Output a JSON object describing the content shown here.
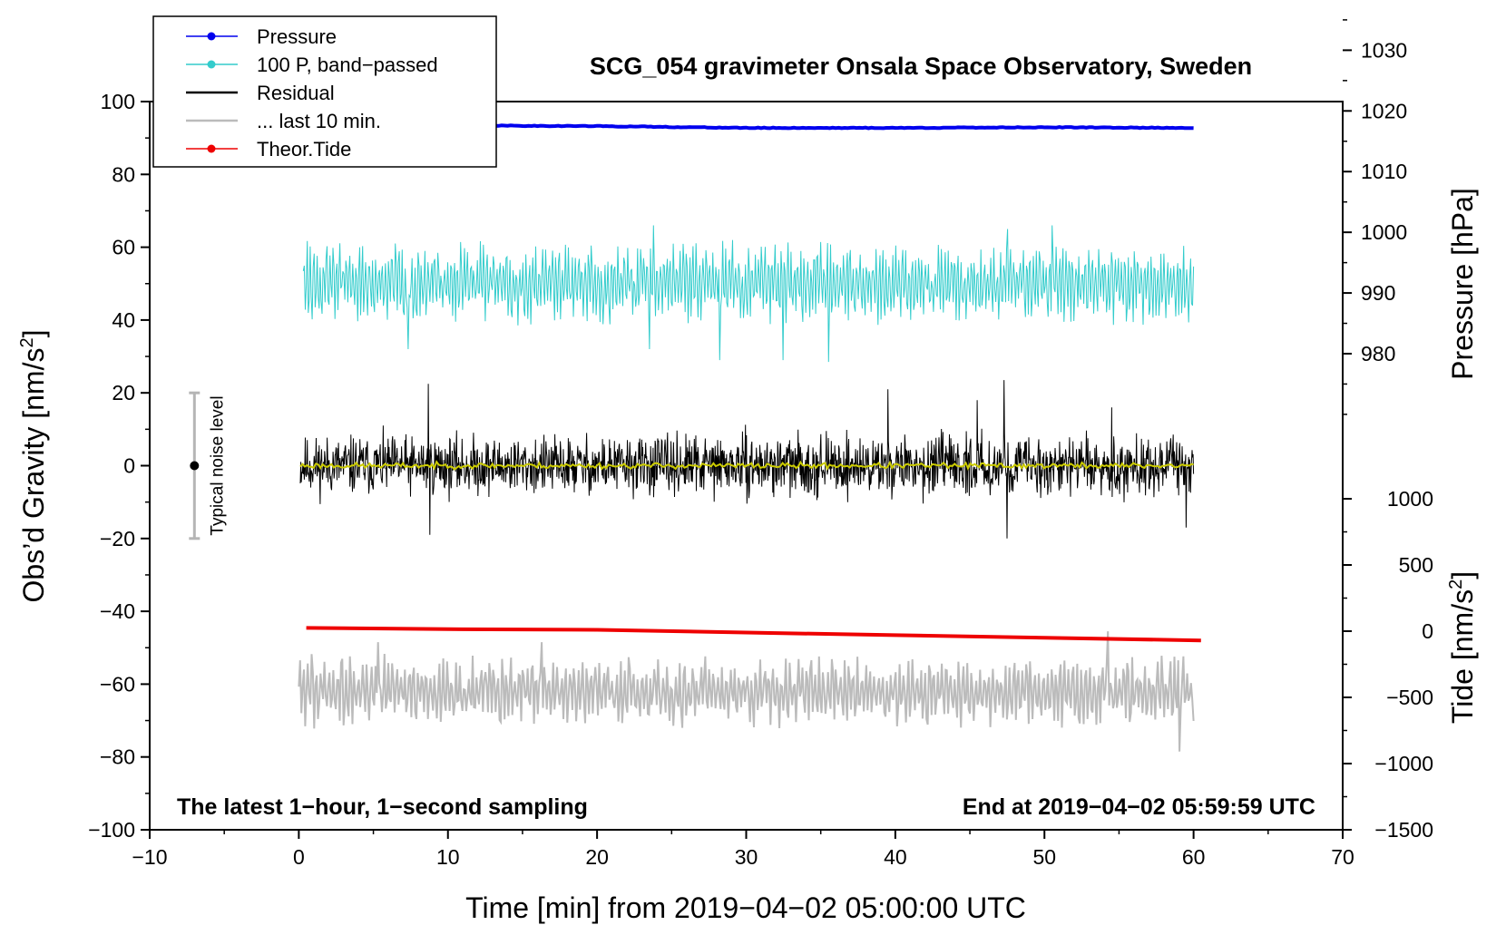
{
  "chart_data": {
    "type": "line",
    "title": "SCG_054 gravimeter Onsala Space Observatory, Sweden",
    "xlabel": "Time [min] from 2019−04−02 05:00:00 UTC",
    "ylabel_left_main": "Obs’d Gravity [nm/s",
    "ylabel_left_sup": "2",
    "ylabel_left_end": "]",
    "ylabel_right_pressure": "Pressure [hPa]",
    "ylabel_right_tide_main": "Tide [nm/s",
    "ylabel_right_tide_sup": "2",
    "ylabel_right_tide_end": "]",
    "xlim": [
      -10,
      70
    ],
    "ylim": [
      -100,
      100
    ],
    "pressure_lim": [
      967,
      1032
    ],
    "tide_lim": [
      -1500,
      1500
    ],
    "x_ticks": [
      -10,
      0,
      10,
      20,
      30,
      40,
      50,
      60,
      70
    ],
    "x_tick_labels": [
      "−10",
      "0",
      "10",
      "20",
      "30",
      "40",
      "50",
      "60",
      "70"
    ],
    "y_ticks": [
      -100,
      -80,
      -60,
      -40,
      -20,
      0,
      20,
      40,
      60,
      80,
      100
    ],
    "y_tick_labels": [
      "−100",
      "−80",
      "−60",
      "−40",
      "−20",
      "0",
      "20",
      "40",
      "60",
      "80",
      "100"
    ],
    "pressure_ticks": [
      980,
      990,
      1000,
      1010,
      1020,
      1030
    ],
    "pressure_tick_labels": [
      "980",
      "990",
      "1000",
      "1010",
      "1020",
      "1030"
    ],
    "tide_ticks": [
      -1500,
      -1000,
      -500,
      0,
      500,
      1000
    ],
    "tide_tick_labels": [
      "−1500",
      "−1000",
      "−500",
      "0",
      "500",
      "1000"
    ],
    "annotation_left": "The latest 1−hour, 1−second sampling",
    "annotation_right": "End at 2019−04−02 05:59:59 UTC",
    "noise_bar": {
      "label": "Typical noise level",
      "x": -7,
      "y": 0,
      "low": -20,
      "high": 20
    },
    "legend": {
      "position": "top-left",
      "entries": [
        {
          "label": "Pressure",
          "color": "#0000ee",
          "marker": true
        },
        {
          "label": "100 P, band−passed",
          "color": "#33cccc",
          "marker": true
        },
        {
          "label": "Residual",
          "color": "#000000",
          "marker": false
        },
        {
          "label": "... last 10 min.",
          "color": "#bbbbbb",
          "marker": false
        },
        {
          "label": "Theor.Tide",
          "color": "#ee0000",
          "marker": true
        }
      ]
    },
    "series": [
      {
        "name": "Pressure",
        "axis": "pressure",
        "color": "#0000ee",
        "x": [
          0,
          10,
          20,
          30,
          40,
          50,
          60
        ],
        "y": [
          1017.8,
          1017.6,
          1017.5,
          1017.2,
          1017.2,
          1017.3,
          1017.2
        ]
      },
      {
        "name": "100 P, band-passed",
        "axis": "gravity",
        "color": "#33cccc",
        "mean": 50,
        "amplitude": 8,
        "spikes": [
          [
            7.3,
            70
          ],
          [
            7.3,
            32
          ],
          [
            23.5,
            32
          ],
          [
            28.2,
            29
          ],
          [
            32.5,
            29
          ],
          [
            35.5,
            28.5
          ],
          [
            50.5,
            66
          ],
          [
            47.5,
            65
          ],
          [
            23.8,
            66
          ]
        ]
      },
      {
        "name": "Residual",
        "axis": "gravity",
        "color": "#000000",
        "mean": 0,
        "amplitude": 7,
        "spikes": [
          [
            47.3,
            23.5
          ],
          [
            47.5,
            -20
          ],
          [
            8.7,
            22.5
          ],
          [
            8.8,
            -19
          ],
          [
            45.5,
            18
          ],
          [
            59.5,
            -17
          ],
          [
            39.5,
            21
          ],
          [
            54.5,
            16
          ]
        ]
      },
      {
        "name": "Residual smoothed",
        "axis": "gravity",
        "color": "#cccc00",
        "mean": 0,
        "amplitude": 0.7
      },
      {
        "name": "... last 10 min.",
        "axis": "gravity",
        "color": "#bbbbbb",
        "mean": -62,
        "amplitude": 7,
        "spikes": [
          [
            59.1,
            -78.5
          ],
          [
            54.3,
            -45.5
          ],
          [
            16.3,
            -48.5
          ],
          [
            5.3,
            -48.5
          ]
        ]
      },
      {
        "name": "Theor.Tide",
        "axis": "tide",
        "color": "#ee0000",
        "x": [
          0.5,
          10,
          20,
          30,
          40,
          50,
          60.5
        ],
        "y": [
          25,
          15,
          10,
          -10,
          -30,
          -50,
          -70
        ]
      }
    ]
  }
}
